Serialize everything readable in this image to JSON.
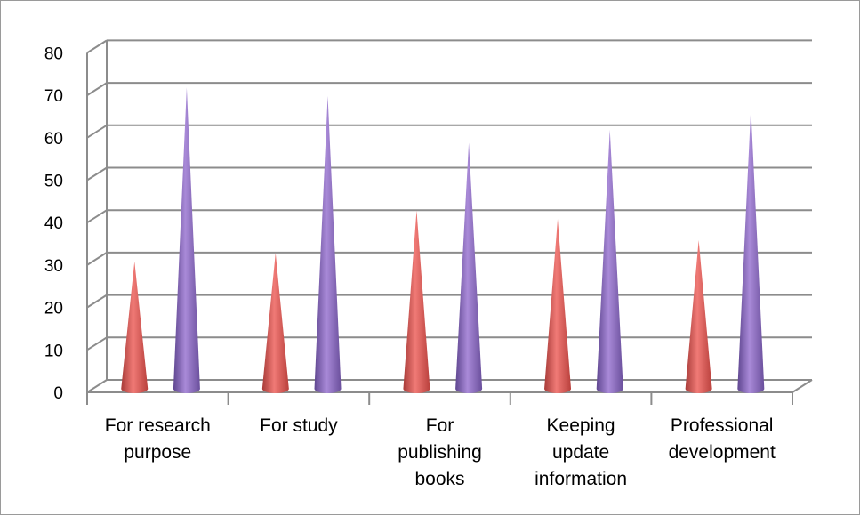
{
  "chart_data": {
    "type": "bar",
    "shape": "cone",
    "categories": [
      [
        "For research",
        "purpose"
      ],
      [
        "For study"
      ],
      [
        "For",
        "publishing",
        "books"
      ],
      [
        "Keeping",
        "update",
        "information"
      ],
      [
        "Professional",
        "development"
      ]
    ],
    "series": [
      {
        "values": [
          30,
          32,
          42,
          40,
          35
        ],
        "color": "#d9534f"
      },
      {
        "values": [
          71,
          69,
          58,
          61,
          66
        ],
        "color": "#8866bb"
      }
    ],
    "ylim": [
      0,
      80
    ],
    "yticks": [
      "0",
      "10",
      "20",
      "30",
      "40",
      "50",
      "60",
      "70",
      "80"
    ],
    "grid": true,
    "legend": "none"
  }
}
